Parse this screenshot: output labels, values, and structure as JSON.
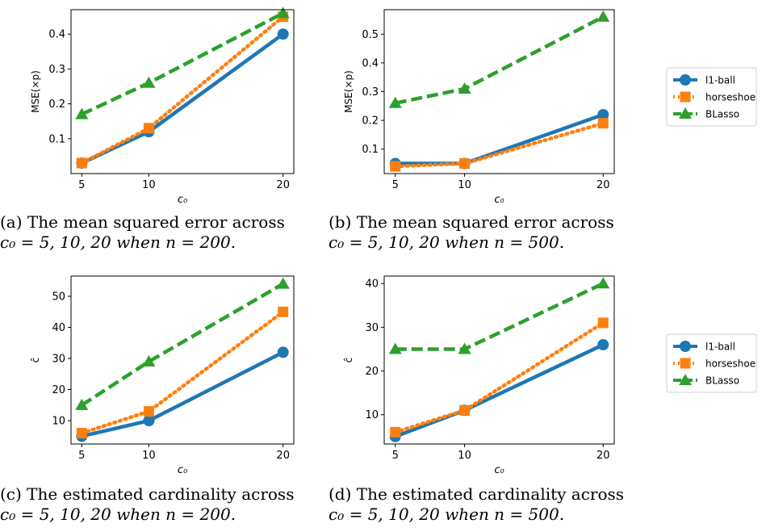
{
  "chart_data": [
    {
      "id": "a",
      "type": "line",
      "x": [
        5,
        10,
        20
      ],
      "xlabel": "c₀",
      "ylabel": "MSE(×p)",
      "xlim": [
        4.2,
        20.8
      ],
      "ylim": [
        0.0,
        0.47
      ],
      "xticks": [
        5,
        10,
        20
      ],
      "yticks": [
        0.1,
        0.2,
        0.3,
        0.4
      ],
      "ytick_labels": [
        "0.1",
        "0.2",
        "0.3",
        "0.4"
      ],
      "series": [
        {
          "name": "l1-ball",
          "values": [
            0.03,
            0.12,
            0.4
          ],
          "color": "#1f77b4",
          "dash": "solid",
          "marker": "circle"
        },
        {
          "name": "horseshoe",
          "values": [
            0.03,
            0.13,
            0.45
          ],
          "color": "#ff7f0e",
          "dash": "dotted",
          "marker": "square"
        },
        {
          "name": "BLasso",
          "values": [
            0.17,
            0.26,
            0.46
          ],
          "color": "#2ca02c",
          "dash": "dashed",
          "marker": "triangle"
        }
      ],
      "grid": false,
      "legend": "none"
    },
    {
      "id": "b",
      "type": "line",
      "x": [
        5,
        10,
        20
      ],
      "xlabel": "c₀",
      "ylabel": "MSE(×p)",
      "xlim": [
        4.2,
        20.8
      ],
      "ylim": [
        0.015,
        0.585
      ],
      "xticks": [
        5,
        10,
        20
      ],
      "yticks": [
        0.1,
        0.2,
        0.3,
        0.4,
        0.5
      ],
      "ytick_labels": [
        "0.1",
        "0.2",
        "0.3",
        "0.4",
        "0.5"
      ],
      "series": [
        {
          "name": "l1-ball",
          "values": [
            0.05,
            0.05,
            0.22
          ],
          "color": "#1f77b4",
          "dash": "solid",
          "marker": "circle"
        },
        {
          "name": "horseshoe",
          "values": [
            0.04,
            0.05,
            0.19
          ],
          "color": "#ff7f0e",
          "dash": "dotted",
          "marker": "square"
        },
        {
          "name": "BLasso",
          "values": [
            0.26,
            0.31,
            0.56
          ],
          "color": "#2ca02c",
          "dash": "dashed",
          "marker": "triangle"
        }
      ],
      "grid": false,
      "legend": "right"
    },
    {
      "id": "c",
      "type": "line",
      "x": [
        5,
        10,
        20
      ],
      "xlabel": "c₀",
      "ylabel": "ĉ",
      "xlim": [
        4.2,
        20.8
      ],
      "ylim": [
        2.5,
        56.5
      ],
      "xticks": [
        5,
        10,
        20
      ],
      "yticks": [
        10,
        20,
        30,
        40,
        50
      ],
      "ytick_labels": [
        "10",
        "20",
        "30",
        "40",
        "50"
      ],
      "series": [
        {
          "name": "l1-ball",
          "values": [
            5,
            10,
            32
          ],
          "color": "#1f77b4",
          "dash": "solid",
          "marker": "circle"
        },
        {
          "name": "horseshoe",
          "values": [
            6,
            13,
            45
          ],
          "color": "#ff7f0e",
          "dash": "dotted",
          "marker": "square"
        },
        {
          "name": "BLasso",
          "values": [
            15,
            29,
            54
          ],
          "color": "#2ca02c",
          "dash": "dashed",
          "marker": "triangle"
        }
      ],
      "grid": false,
      "legend": "none"
    },
    {
      "id": "d",
      "type": "line",
      "x": [
        5,
        10,
        20
      ],
      "xlabel": "c₀",
      "ylabel": "ĉ",
      "xlim": [
        4.2,
        20.8
      ],
      "ylim": [
        3.3,
        41.7
      ],
      "xticks": [
        5,
        10,
        20
      ],
      "yticks": [
        10,
        20,
        30,
        40
      ],
      "ytick_labels": [
        "10",
        "20",
        "30",
        "40"
      ],
      "series": [
        {
          "name": "l1-ball",
          "values": [
            5,
            11,
            26
          ],
          "color": "#1f77b4",
          "dash": "solid",
          "marker": "circle"
        },
        {
          "name": "horseshoe",
          "values": [
            6,
            11,
            31
          ],
          "color": "#ff7f0e",
          "dash": "dotted",
          "marker": "square"
        },
        {
          "name": "BLasso",
          "values": [
            25,
            25,
            40
          ],
          "color": "#2ca02c",
          "dash": "dashed",
          "marker": "triangle"
        }
      ],
      "grid": false,
      "legend": "right"
    }
  ],
  "captions": {
    "a": {
      "line1": "(a) The mean squared error across",
      "line2": "c₀ = 5, 10, 20 when n = 200."
    },
    "b": {
      "line1": "(b) The mean squared error across",
      "line2": "c₀ = 5, 10, 20 when n = 500."
    },
    "c": {
      "line1": "(c) The estimated cardinality across",
      "line2": "c₀ = 5, 10, 20 when n = 200."
    },
    "d": {
      "line1": "(d) The estimated cardinality across",
      "line2": "c₀ = 5, 10, 20 when n = 500."
    }
  }
}
